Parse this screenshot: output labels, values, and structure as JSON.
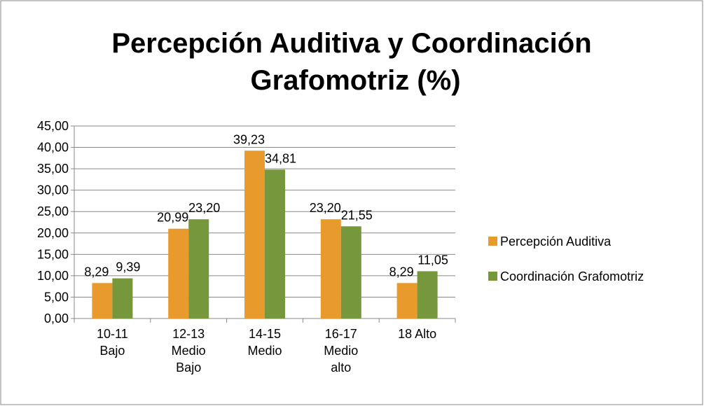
{
  "chart_data": {
    "type": "bar",
    "title": "Percepción Auditiva y Coordinación Grafomotriz (%)",
    "categories": [
      "10-11 Bajo",
      "12-13 Medio Bajo",
      "14-15 Medio",
      "16-17 Medio alto",
      "18 Alto"
    ],
    "series": [
      {
        "name": "Percepción Auditiva",
        "color": "#e99a2c",
        "values": [
          8.29,
          20.99,
          39.23,
          23.2,
          8.29
        ],
        "value_labels": [
          "8,29",
          "20,99",
          "39,23",
          "23,20",
          "8,29"
        ]
      },
      {
        "name": "Coordinación Grafomotriz",
        "color": "#77973d",
        "values": [
          9.39,
          23.2,
          34.81,
          21.55,
          11.05
        ],
        "value_labels": [
          "9,39",
          "23,20",
          "34,81",
          "21,55",
          "11,05"
        ]
      }
    ],
    "ylim": [
      0,
      45
    ],
    "yticks": [
      {
        "value": 0,
        "label": "0,00"
      },
      {
        "value": 5,
        "label": "5,00"
      },
      {
        "value": 10,
        "label": "10,00"
      },
      {
        "value": 15,
        "label": "15,00"
      },
      {
        "value": 20,
        "label": "20,00"
      },
      {
        "value": 25,
        "label": "25,00"
      },
      {
        "value": 30,
        "label": "30,00"
      },
      {
        "value": 35,
        "label": "35,00"
      },
      {
        "value": 40,
        "label": "40,00"
      },
      {
        "value": 45,
        "label": "45,00"
      }
    ],
    "grid": true,
    "legend": "right"
  }
}
